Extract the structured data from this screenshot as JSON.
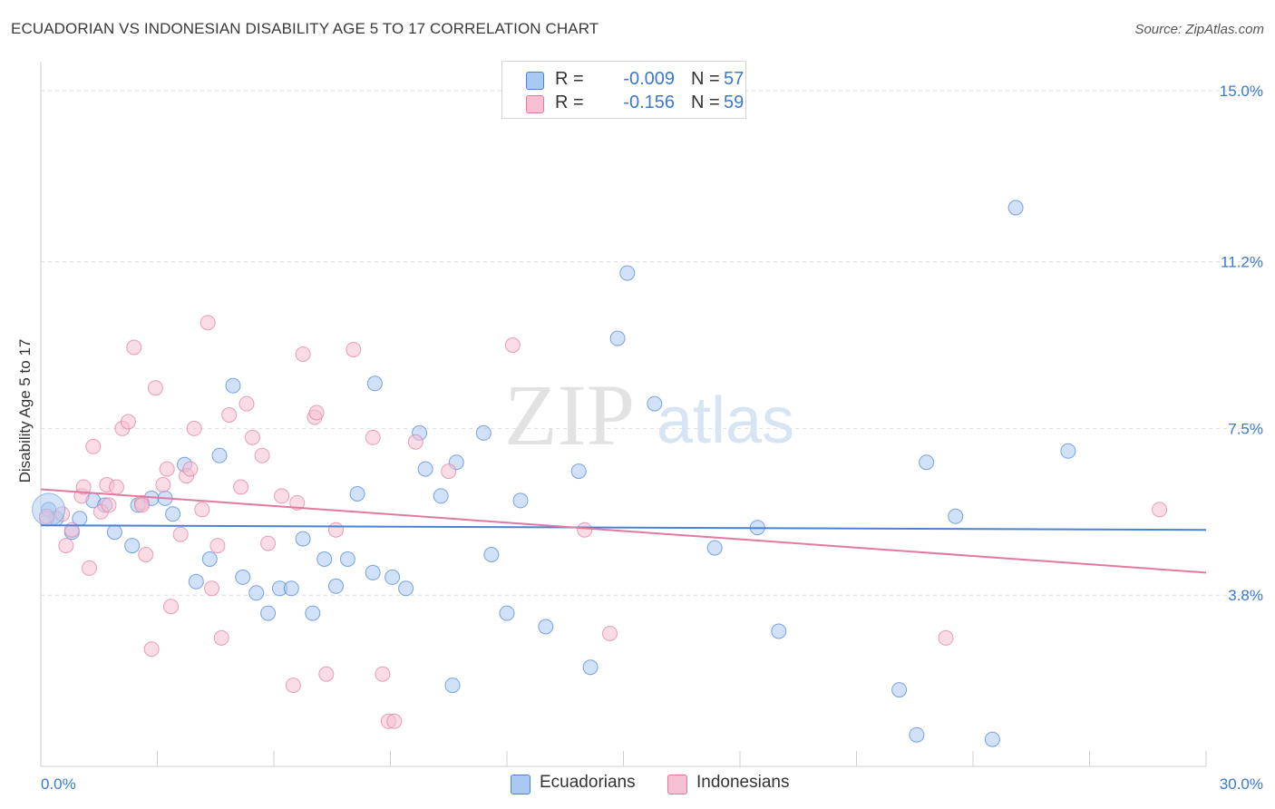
{
  "header": {
    "title": "ECUADORIAN VS INDONESIAN DISABILITY AGE 5 TO 17 CORRELATION CHART",
    "source": "Source: ZipAtlas.com"
  },
  "watermark": {
    "zip": "ZIP",
    "atlas": "atlas"
  },
  "legend": {
    "rows": [
      {
        "r_label": "R =",
        "r_value": "-0.009",
        "n_label": "N =",
        "n_value": "57",
        "color": "#a9c9f2",
        "border": "#4a82d6"
      },
      {
        "r_label": "R =",
        "r_value": "-0.156",
        "n_label": "N =",
        "n_value": "59",
        "color": "#f6bfd2",
        "border": "#e07aa0"
      }
    ]
  },
  "bottom_legend": [
    {
      "label": "Ecuadorians",
      "color": "#a9c9f2",
      "border": "#4a82d6"
    },
    {
      "label": "Indonesians",
      "color": "#f6bfd2",
      "border": "#e07aa0"
    }
  ],
  "chart_data": {
    "type": "scatter",
    "xlabel": "",
    "ylabel": "Disability Age 5 to 17",
    "xlim": [
      0,
      30
    ],
    "ylim": [
      0,
      15.4
    ],
    "x_tick_labels": [
      {
        "value": 0,
        "label": "0.0%",
        "align": "left"
      },
      {
        "value": 30,
        "label": "30.0%",
        "align": "right"
      }
    ],
    "y_tick_labels": [
      {
        "value": 15.0,
        "label": "15.0%"
      },
      {
        "value": 11.2,
        "label": "11.2%"
      },
      {
        "value": 7.5,
        "label": "7.5%"
      },
      {
        "value": 3.8,
        "label": "3.8%"
      }
    ],
    "grid": true,
    "series": [
      {
        "name": "Ecuadorians",
        "color": "#4a82d6",
        "fill": "#a9c9f2",
        "trend": {
          "x0": 0,
          "y0": 5.35,
          "x1": 30,
          "y1": 5.25
        },
        "points": [
          [
            0.2,
            5.7
          ],
          [
            0.4,
            5.5
          ],
          [
            0.8,
            5.2
          ],
          [
            1.0,
            5.5
          ],
          [
            1.35,
            5.9
          ],
          [
            1.65,
            5.8
          ],
          [
            1.9,
            5.2
          ],
          [
            2.35,
            4.9
          ],
          [
            2.5,
            5.8
          ],
          [
            2.85,
            5.95
          ],
          [
            3.2,
            5.95
          ],
          [
            3.4,
            5.6
          ],
          [
            3.7,
            6.7
          ],
          [
            4.0,
            4.1
          ],
          [
            4.35,
            4.6
          ],
          [
            4.6,
            6.9
          ],
          [
            4.95,
            8.45
          ],
          [
            5.2,
            4.2
          ],
          [
            5.55,
            3.85
          ],
          [
            5.85,
            3.4
          ],
          [
            6.15,
            3.95
          ],
          [
            6.45,
            3.95
          ],
          [
            6.75,
            5.05
          ],
          [
            7.0,
            3.4
          ],
          [
            7.3,
            4.6
          ],
          [
            7.6,
            4.0
          ],
          [
            7.9,
            4.6
          ],
          [
            8.15,
            6.05
          ],
          [
            8.55,
            4.3
          ],
          [
            8.6,
            8.5
          ],
          [
            9.05,
            4.2
          ],
          [
            9.4,
            3.95
          ],
          [
            9.75,
            7.4
          ],
          [
            9.9,
            6.6
          ],
          [
            10.3,
            6.0
          ],
          [
            10.6,
            1.8
          ],
          [
            10.7,
            6.75
          ],
          [
            11.4,
            7.4
          ],
          [
            11.6,
            4.7
          ],
          [
            12.0,
            3.4
          ],
          [
            12.35,
            5.9
          ],
          [
            13.0,
            3.1
          ],
          [
            13.85,
            6.55
          ],
          [
            14.15,
            2.2
          ],
          [
            14.85,
            9.5
          ],
          [
            15.1,
            10.95
          ],
          [
            15.8,
            8.05
          ],
          [
            17.35,
            4.85
          ],
          [
            18.45,
            5.3
          ],
          [
            19.0,
            3.0
          ],
          [
            22.1,
            1.7
          ],
          [
            22.55,
            0.7
          ],
          [
            22.8,
            6.75
          ],
          [
            23.55,
            5.55
          ],
          [
            24.5,
            0.6
          ],
          [
            25.1,
            12.4
          ],
          [
            26.45,
            7.0
          ]
        ]
      },
      {
        "name": "Indonesians",
        "color": "#e07aa0",
        "fill": "#f6bfd2",
        "trend": {
          "x0": 0,
          "y0": 6.15,
          "x1": 30,
          "y1": 4.3
        },
        "points": [
          [
            0.15,
            5.5
          ],
          [
            0.55,
            5.6
          ],
          [
            0.65,
            4.9
          ],
          [
            0.8,
            5.25
          ],
          [
            1.05,
            6.0
          ],
          [
            1.1,
            6.2
          ],
          [
            1.25,
            4.4
          ],
          [
            1.35,
            7.1
          ],
          [
            1.55,
            5.65
          ],
          [
            1.75,
            5.8
          ],
          [
            1.7,
            6.25
          ],
          [
            1.95,
            6.2
          ],
          [
            2.1,
            7.5
          ],
          [
            2.25,
            7.65
          ],
          [
            2.4,
            9.3
          ],
          [
            2.6,
            5.85
          ],
          [
            2.7,
            4.7
          ],
          [
            2.85,
            2.6
          ],
          [
            2.95,
            8.4
          ],
          [
            3.15,
            6.25
          ],
          [
            3.25,
            6.6
          ],
          [
            3.35,
            3.55
          ],
          [
            3.6,
            5.15
          ],
          [
            3.75,
            6.45
          ],
          [
            3.85,
            6.6
          ],
          [
            3.95,
            7.5
          ],
          [
            4.15,
            5.7
          ],
          [
            4.3,
            9.85
          ],
          [
            4.4,
            3.95
          ],
          [
            4.55,
            4.9
          ],
          [
            4.65,
            2.85
          ],
          [
            4.85,
            7.8
          ],
          [
            5.15,
            6.2
          ],
          [
            5.3,
            8.05
          ],
          [
            5.45,
            7.3
          ],
          [
            5.7,
            6.9
          ],
          [
            5.85,
            4.95
          ],
          [
            6.2,
            6.0
          ],
          [
            6.5,
            1.8
          ],
          [
            6.6,
            5.85
          ],
          [
            6.75,
            9.15
          ],
          [
            7.05,
            7.75
          ],
          [
            7.1,
            7.85
          ],
          [
            7.35,
            2.05
          ],
          [
            7.6,
            5.25
          ],
          [
            8.05,
            9.25
          ],
          [
            8.55,
            7.3
          ],
          [
            8.8,
            2.05
          ],
          [
            8.95,
            1.0
          ],
          [
            9.1,
            1.0
          ],
          [
            9.65,
            7.2
          ],
          [
            10.5,
            6.55
          ],
          [
            12.15,
            9.35
          ],
          [
            14.0,
            5.25
          ],
          [
            14.65,
            2.95
          ],
          [
            23.3,
            2.85
          ],
          [
            28.8,
            5.7
          ],
          [
            0.15,
            5.55
          ],
          [
            2.6,
            5.8
          ]
        ]
      }
    ]
  }
}
